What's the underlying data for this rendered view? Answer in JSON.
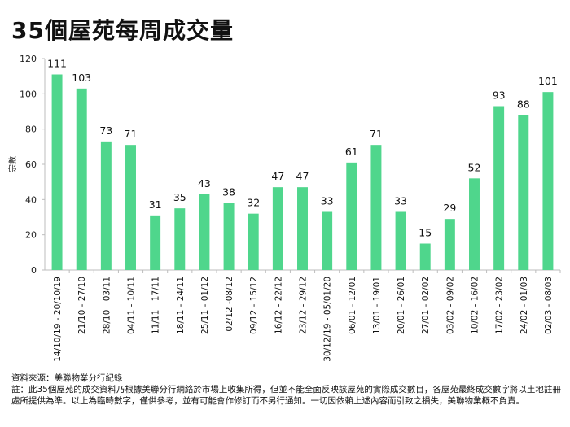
{
  "chart_data": {
    "type": "bar",
    "title": "35個屋苑每周成交量",
    "xlabel": "",
    "ylabel": "宗數",
    "ylim": [
      0,
      120
    ],
    "yticks": [
      0,
      20,
      40,
      60,
      80,
      100,
      120
    ],
    "grid": false,
    "bar_color": "#4fd68c",
    "categories": [
      "14/10/19 - 20/10/19",
      "21/10 - 27/10",
      "28/10 - 03/11",
      "04/11 - 10/11",
      "11/11 - 17/11",
      "18/11 - 24/11",
      "25/11 - 01/12",
      "02/12 -08/12",
      "09/12 - 15/12",
      "16/12 - 22/12",
      "23/12 - 29/12",
      "30/12/19 - 05/01/20",
      "06/01 - 12/01",
      "13/01 - 19/01",
      "20/01 - 26/01",
      "27/01 - 02/02",
      "03/02 - 09/02",
      "10/02 - 16/02",
      "17/02 - 23/02",
      "24/02 - 01/03",
      "02/03 - 08/03"
    ],
    "values": [
      111,
      103,
      73,
      71,
      31,
      35,
      43,
      38,
      32,
      47,
      47,
      33,
      61,
      71,
      33,
      15,
      29,
      52,
      93,
      88,
      101
    ]
  },
  "footer": {
    "source": "資料來源：美聯物業分行紀錄",
    "note": "註：此35個屋苑的成交資料乃根據美聯分行網絡於市場上收集所得，但並不能全面反映該屋苑的實際成交數目，各屋苑最終成交數字將以土地註冊處所提供為準。以上為臨時數字，僅供參考，並有可能會作修訂而不另行通知。一切因依賴上述內容而引致之損失，美聯物業概不負責。"
  }
}
